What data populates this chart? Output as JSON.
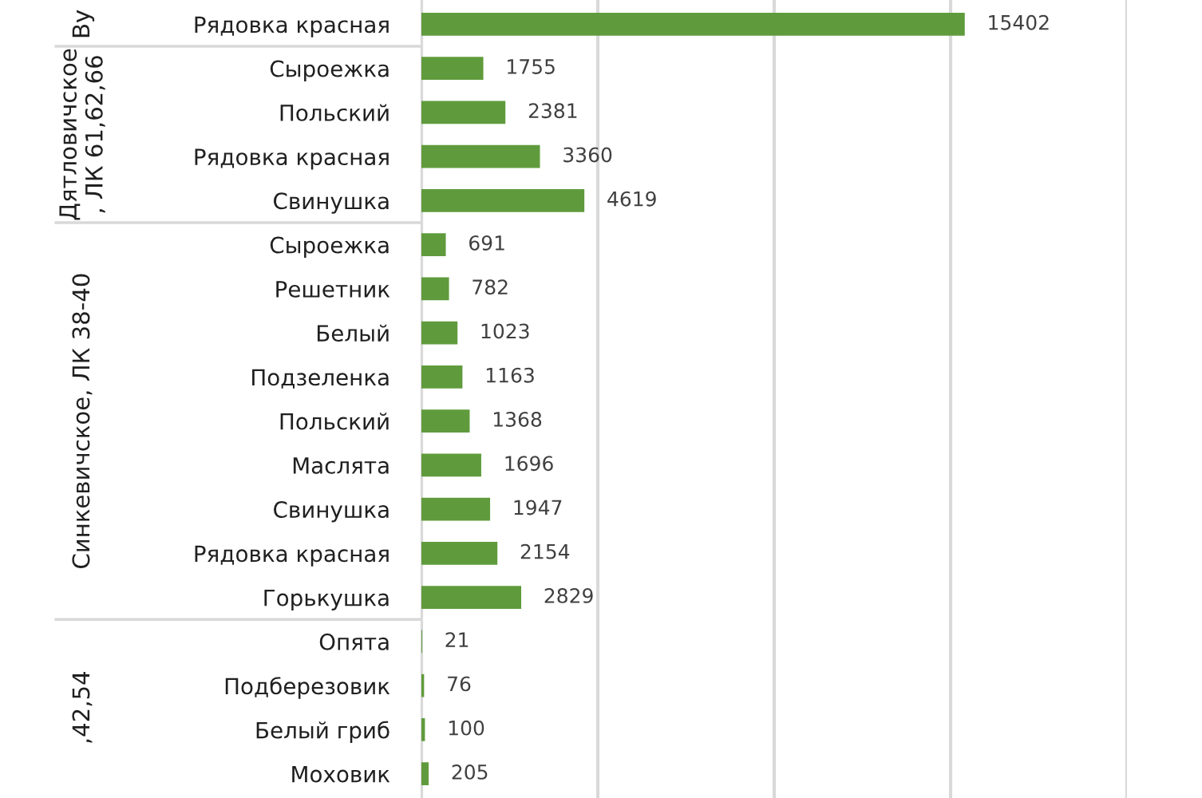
{
  "chart_data": {
    "type": "bar",
    "orientation": "horizontal",
    "categories": [
      "Рядовка красная",
      "Сыроежка",
      "Польский",
      "Рядовка красная",
      "Свинушка",
      "Сыроежка",
      "Решетник",
      "Белый",
      "Подзеленка",
      "Польский",
      "Маслята",
      "Свинушка",
      "Рядовка красная",
      "Горькушка",
      "Опята",
      "Подберезовик",
      "Белый гриб",
      "Моховик"
    ],
    "values": [
      15402,
      1755,
      2381,
      3360,
      4619,
      691,
      782,
      1023,
      1163,
      1368,
      1696,
      1947,
      2154,
      2829,
      21,
      76,
      100,
      205
    ],
    "color": "#5f9b3c",
    "data_labels": true,
    "xlim": [
      0,
      20000
    ],
    "xticks": [
      {
        "value": 0,
        "label": null
      },
      {
        "value": 5000,
        "label": null
      },
      {
        "value": 10000,
        "label": null
      },
      {
        "value": 15000,
        "label": null
      },
      {
        "value": 20000,
        "label": null
      }
    ],
    "grid": "x",
    "tick_labels": "y",
    "annotations": [
      "Ву",
      "Дятловичское\n, ЛК 61,62,66",
      "Синкевичское, ЛК 38-40",
      ",42,54"
    ]
  }
}
